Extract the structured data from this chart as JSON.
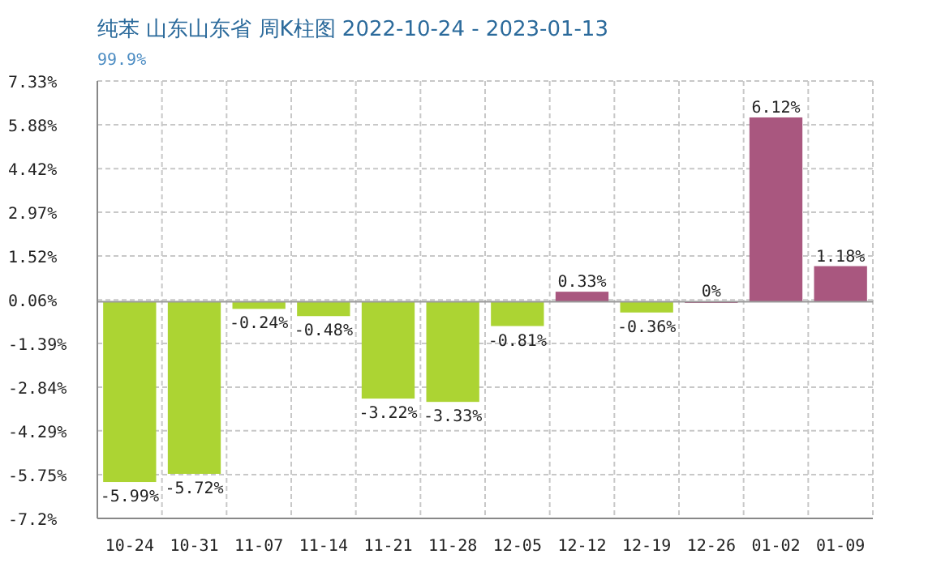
{
  "chart_data": {
    "type": "bar",
    "title": "纯苯 山东山东省 周K柱图 2022-10-24 - 2023-01-13",
    "subtitle": "99.9%",
    "categories": [
      "10-24",
      "10-31",
      "11-07",
      "11-14",
      "11-21",
      "11-28",
      "12-05",
      "12-12",
      "12-19",
      "12-26",
      "01-02",
      "01-09"
    ],
    "values": [
      -5.99,
      -5.72,
      -0.24,
      -0.48,
      -3.22,
      -3.33,
      -0.81,
      0.33,
      -0.36,
      0,
      6.12,
      1.18
    ],
    "value_labels": [
      "-5.99%",
      "-5.72%",
      "-0.24%",
      "-0.48%",
      "-3.22%",
      "-3.33%",
      "-0.81%",
      "0.33%",
      "-0.36%",
      "0%",
      "6.12%",
      "1.18%"
    ],
    "colors": [
      "#acd433",
      "#acd433",
      "#acd433",
      "#acd433",
      "#acd433",
      "#acd433",
      "#acd433",
      "#a9577f",
      "#acd433",
      "#a9577f",
      "#a9577f",
      "#a9577f"
    ],
    "ylim": [
      -7.2,
      7.33
    ],
    "yticks": [
      {
        "value": 7.33,
        "label": "7.33%"
      },
      {
        "value": 5.88,
        "label": "5.88%"
      },
      {
        "value": 4.42,
        "label": "4.42%"
      },
      {
        "value": 2.97,
        "label": "2.97%"
      },
      {
        "value": 1.52,
        "label": "1.52%"
      },
      {
        "value": 0.06,
        "label": "0.06%"
      },
      {
        "value": -1.39,
        "label": "-1.39%"
      },
      {
        "value": -2.84,
        "label": "-2.84%"
      },
      {
        "value": -4.29,
        "label": "-4.29%"
      },
      {
        "value": -5.75,
        "label": "-5.75%"
      },
      {
        "value": -7.2,
        "label": "-7.2%"
      }
    ],
    "grid": true
  }
}
